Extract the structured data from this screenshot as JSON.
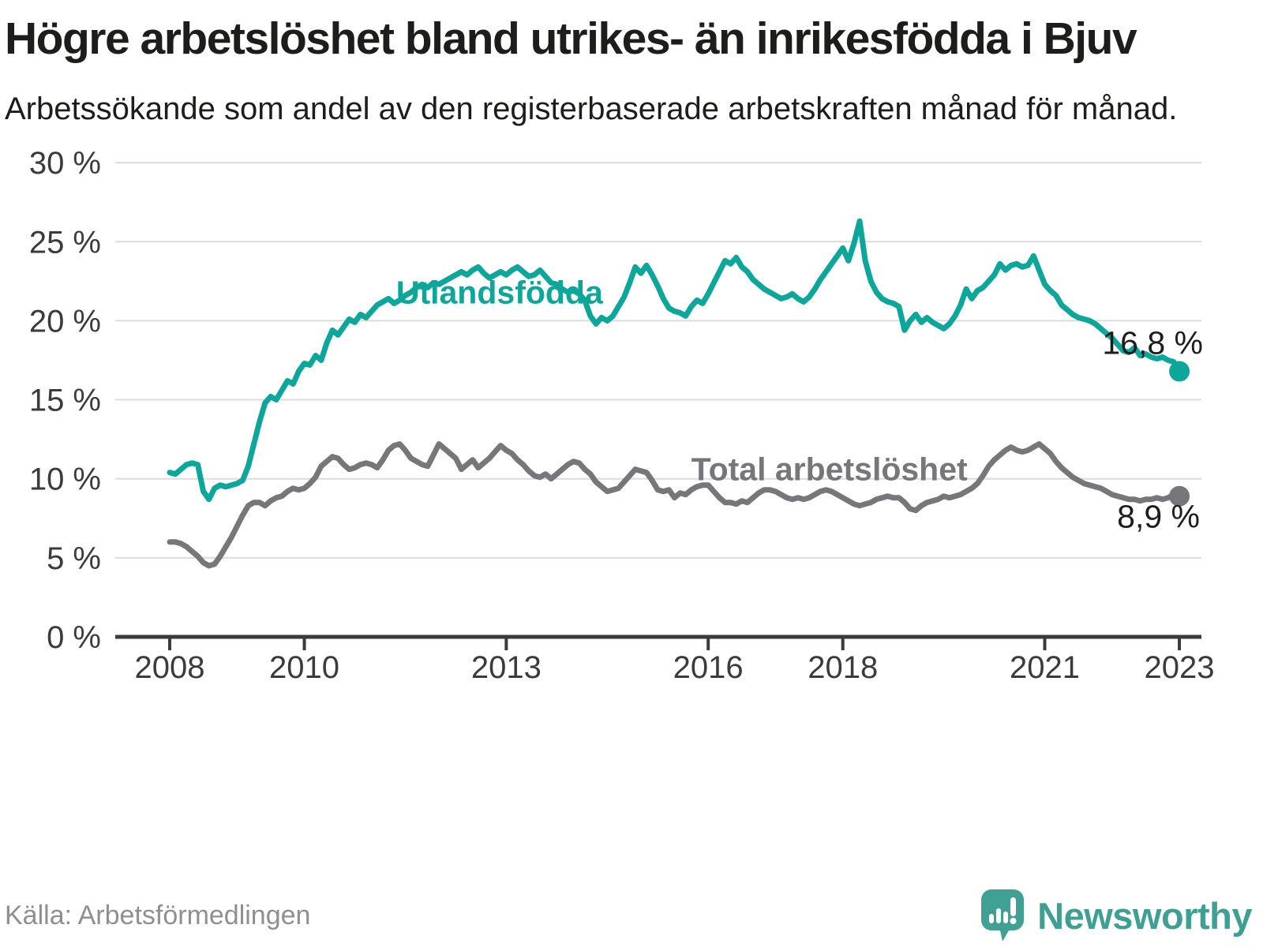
{
  "title": "Högre arbetslöshet bland utrikes- än inrikesfödda i Bjuv",
  "subtitle": "Arbetssökande som andel av den registerbaserade arbetskraften månad för månad.",
  "source": "Källa: Arbetsförmedlingen",
  "branding": {
    "wordmark": "Newsworthy",
    "logo_icon": "speech-bubble-with-bar-chart-and-exclamation",
    "color": "#3f9f93"
  },
  "colors": {
    "foreign_born_line": "#0ca69b",
    "total_line": "#77777b",
    "grid": "#dcdcdc",
    "axis": "#3b3b3b",
    "tick_text": "#3b3b3b",
    "value_label_text": "#1d1d1b",
    "title_text": "#1d1d1b",
    "muted_text": "#8f8f8f"
  },
  "chart_data": {
    "type": "line",
    "title": "Högre arbetslöshet bland utrikes- än inrikesfödda i Bjuv",
    "subtitle": "Arbetssökande som andel av den registerbaserade arbetskraften månad för månad.",
    "xlabel": "",
    "ylabel": "",
    "grid": "horizontal",
    "legend": "inline-labels-on-lines",
    "ylim": [
      0,
      30
    ],
    "x_start_year": 2008,
    "x_step_months": 1,
    "x_end_year": 2023,
    "yticks": [
      {
        "value": 0,
        "label": "0 %"
      },
      {
        "value": 5,
        "label": "5 %"
      },
      {
        "value": 10,
        "label": "10 %"
      },
      {
        "value": 15,
        "label": "15 %"
      },
      {
        "value": 20,
        "label": "20 %"
      },
      {
        "value": 25,
        "label": "25 %"
      },
      {
        "value": 30,
        "label": "30 %"
      }
    ],
    "xticks": [
      {
        "value": 2008,
        "label": "2008"
      },
      {
        "value": 2010,
        "label": "2010"
      },
      {
        "value": 2013,
        "label": "2013"
      },
      {
        "value": 2016,
        "label": "2016"
      },
      {
        "value": 2018,
        "label": "2018"
      },
      {
        "value": 2021,
        "label": "2021"
      },
      {
        "value": 2023,
        "label": "2023"
      }
    ],
    "series": [
      {
        "name": "Utlandsfödda",
        "color": "#0ca69b",
        "end_label": "16,8 %",
        "latest_value": 16.8,
        "label_at": {
          "year": 2012.9,
          "value": 21.8
        },
        "end_label_offset": {
          "dx": 28,
          "dy": -22
        },
        "values": [
          10.4,
          10.3,
          10.6,
          10.9,
          11.0,
          10.9,
          9.2,
          8.7,
          9.4,
          9.6,
          9.5,
          9.6,
          9.7,
          9.9,
          10.8,
          12.2,
          13.6,
          14.8,
          15.2,
          15.0,
          15.6,
          16.2,
          16.0,
          16.8,
          17.3,
          17.2,
          17.8,
          17.5,
          18.6,
          19.4,
          19.1,
          19.6,
          20.1,
          19.9,
          20.4,
          20.2,
          20.6,
          21.0,
          21.2,
          21.4,
          21.1,
          21.3,
          21.6,
          21.8,
          22.1,
          22.3,
          22.1,
          22.4,
          22.3,
          22.5,
          22.7,
          22.9,
          23.1,
          22.9,
          23.2,
          23.4,
          23.0,
          22.7,
          22.9,
          23.1,
          22.9,
          23.2,
          23.4,
          23.1,
          22.8,
          22.9,
          23.2,
          22.8,
          22.4,
          22.3,
          22.0,
          21.8,
          21.9,
          21.7,
          21.3,
          20.3,
          19.8,
          20.2,
          20.0,
          20.3,
          20.9,
          21.5,
          22.4,
          23.4,
          23.0,
          23.5,
          22.9,
          22.2,
          21.4,
          20.8,
          20.6,
          20.5,
          20.3,
          20.9,
          21.3,
          21.1,
          21.7,
          22.4,
          23.1,
          23.8,
          23.6,
          24.0,
          23.4,
          23.1,
          22.6,
          22.3,
          22.0,
          21.8,
          21.6,
          21.4,
          21.5,
          21.7,
          21.4,
          21.2,
          21.5,
          22.0,
          22.6,
          23.1,
          23.6,
          24.1,
          24.6,
          23.8,
          24.9,
          26.3,
          23.8,
          22.5,
          21.8,
          21.4,
          21.2,
          21.1,
          20.9,
          19.4,
          20.0,
          20.4,
          19.9,
          20.2,
          19.9,
          19.7,
          19.5,
          19.8,
          20.3,
          21.0,
          22.0,
          21.4,
          21.9,
          22.1,
          22.5,
          22.9,
          23.6,
          23.2,
          23.5,
          23.6,
          23.4,
          23.5,
          24.1,
          23.2,
          22.3,
          21.9,
          21.6,
          21.0,
          20.7,
          20.4,
          20.2,
          20.1,
          20.0,
          19.8,
          19.5,
          19.2,
          18.9,
          18.5,
          18.1,
          18.0,
          18.3,
          17.8,
          17.9,
          17.7,
          17.6,
          17.7,
          17.5,
          17.4,
          16.8
        ]
      },
      {
        "name": "Total arbetslöshet",
        "color": "#77777b",
        "end_label": "8,9 %",
        "latest_value": 8.9,
        "label_at": {
          "year": 2017.8,
          "value": 10.6
        },
        "end_label_offset": {
          "dx": 24,
          "dy": 40
        },
        "values": [
          6.0,
          6.0,
          5.9,
          5.7,
          5.4,
          5.1,
          4.7,
          4.5,
          4.6,
          5.1,
          5.7,
          6.3,
          7.0,
          7.7,
          8.3,
          8.5,
          8.5,
          8.3,
          8.6,
          8.8,
          8.9,
          9.2,
          9.4,
          9.3,
          9.4,
          9.7,
          10.1,
          10.8,
          11.1,
          11.4,
          11.3,
          10.9,
          10.6,
          10.7,
          10.9,
          11.0,
          10.9,
          10.7,
          11.2,
          11.8,
          12.1,
          12.2,
          11.8,
          11.3,
          11.1,
          10.9,
          10.8,
          11.5,
          12.2,
          11.9,
          11.6,
          11.3,
          10.6,
          10.9,
          11.2,
          10.7,
          11.0,
          11.3,
          11.7,
          12.1,
          11.8,
          11.6,
          11.2,
          10.9,
          10.5,
          10.2,
          10.1,
          10.3,
          10.0,
          10.3,
          10.6,
          10.9,
          11.1,
          11.0,
          10.6,
          10.3,
          9.8,
          9.5,
          9.2,
          9.3,
          9.4,
          9.8,
          10.2,
          10.6,
          10.5,
          10.4,
          9.9,
          9.3,
          9.2,
          9.3,
          8.8,
          9.1,
          9.0,
          9.3,
          9.5,
          9.6,
          9.6,
          9.2,
          8.8,
          8.5,
          8.5,
          8.4,
          8.6,
          8.5,
          8.8,
          9.1,
          9.3,
          9.3,
          9.2,
          9.0,
          8.8,
          8.7,
          8.8,
          8.7,
          8.8,
          9.0,
          9.2,
          9.3,
          9.2,
          9.0,
          8.8,
          8.6,
          8.4,
          8.3,
          8.4,
          8.5,
          8.7,
          8.8,
          8.9,
          8.8,
          8.8,
          8.5,
          8.1,
          8.0,
          8.3,
          8.5,
          8.6,
          8.7,
          8.9,
          8.8,
          8.9,
          9.0,
          9.2,
          9.4,
          9.7,
          10.2,
          10.8,
          11.2,
          11.5,
          11.8,
          12.0,
          11.8,
          11.7,
          11.8,
          12.0,
          12.2,
          11.9,
          11.6,
          11.1,
          10.7,
          10.4,
          10.1,
          9.9,
          9.7,
          9.6,
          9.5,
          9.4,
          9.2,
          9.0,
          8.9,
          8.8,
          8.7,
          8.7,
          8.6,
          8.7,
          8.7,
          8.8,
          8.7,
          8.8,
          9.0,
          8.9
        ]
      }
    ]
  }
}
